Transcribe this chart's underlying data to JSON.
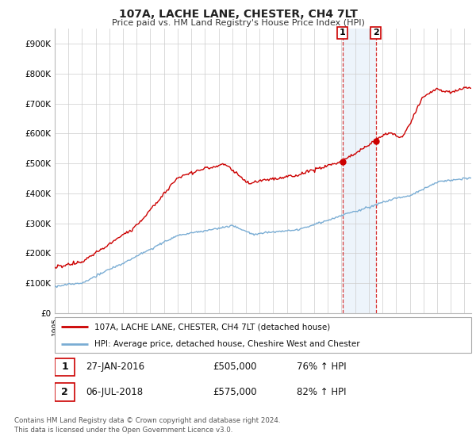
{
  "title": "107A, LACHE LANE, CHESTER, CH4 7LT",
  "subtitle": "Price paid vs. HM Land Registry's House Price Index (HPI)",
  "footer": "Contains HM Land Registry data © Crown copyright and database right 2024.\nThis data is licensed under the Open Government Licence v3.0.",
  "legend_line1": "107A, LACHE LANE, CHESTER, CH4 7LT (detached house)",
  "legend_line2": "HPI: Average price, detached house, Cheshire West and Chester",
  "sale1_label": "1",
  "sale1_date": "27-JAN-2016",
  "sale1_price": "£505,000",
  "sale1_hpi": "76% ↑ HPI",
  "sale1_year": 2016.07,
  "sale1_value": 505000,
  "sale2_label": "2",
  "sale2_date": "06-JUL-2018",
  "sale2_price": "£575,000",
  "sale2_hpi": "82% ↑ HPI",
  "sale2_year": 2018.51,
  "sale2_value": 575000,
  "hpi_color": "#7aadd4",
  "price_color": "#cc0000",
  "vline_color": "#cc0000",
  "highlight_color": "#cce0f5",
  "ylim": [
    0,
    950000
  ],
  "yticks": [
    0,
    100000,
    200000,
    300000,
    400000,
    500000,
    600000,
    700000,
    800000,
    900000
  ],
  "ytick_labels": [
    "£0",
    "£100K",
    "£200K",
    "£300K",
    "£400K",
    "£500K",
    "£600K",
    "£700K",
    "£800K",
    "£900K"
  ],
  "xlim_start": 1995.0,
  "xlim_end": 2025.5
}
